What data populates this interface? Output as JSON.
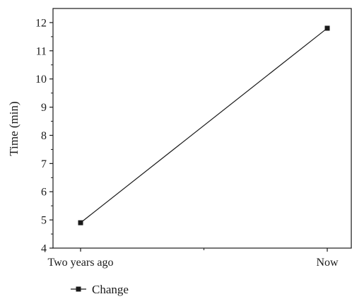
{
  "chart_data": {
    "type": "line",
    "categories": [
      "Two years ago",
      "Now"
    ],
    "series": [
      {
        "name": "Change",
        "values": [
          4.9,
          11.8
        ]
      }
    ],
    "title": "",
    "xlabel": "",
    "ylabel": "Time (min)",
    "ylim": [
      4,
      12.5
    ],
    "yticks": [
      4,
      5,
      6,
      7,
      8,
      9,
      10,
      11,
      12
    ],
    "grid": false,
    "legend": "bottom-left",
    "colors": {
      "line": "#1a1a1a",
      "marker": "#1a1a1a",
      "axis": "#1a1a1a"
    }
  }
}
